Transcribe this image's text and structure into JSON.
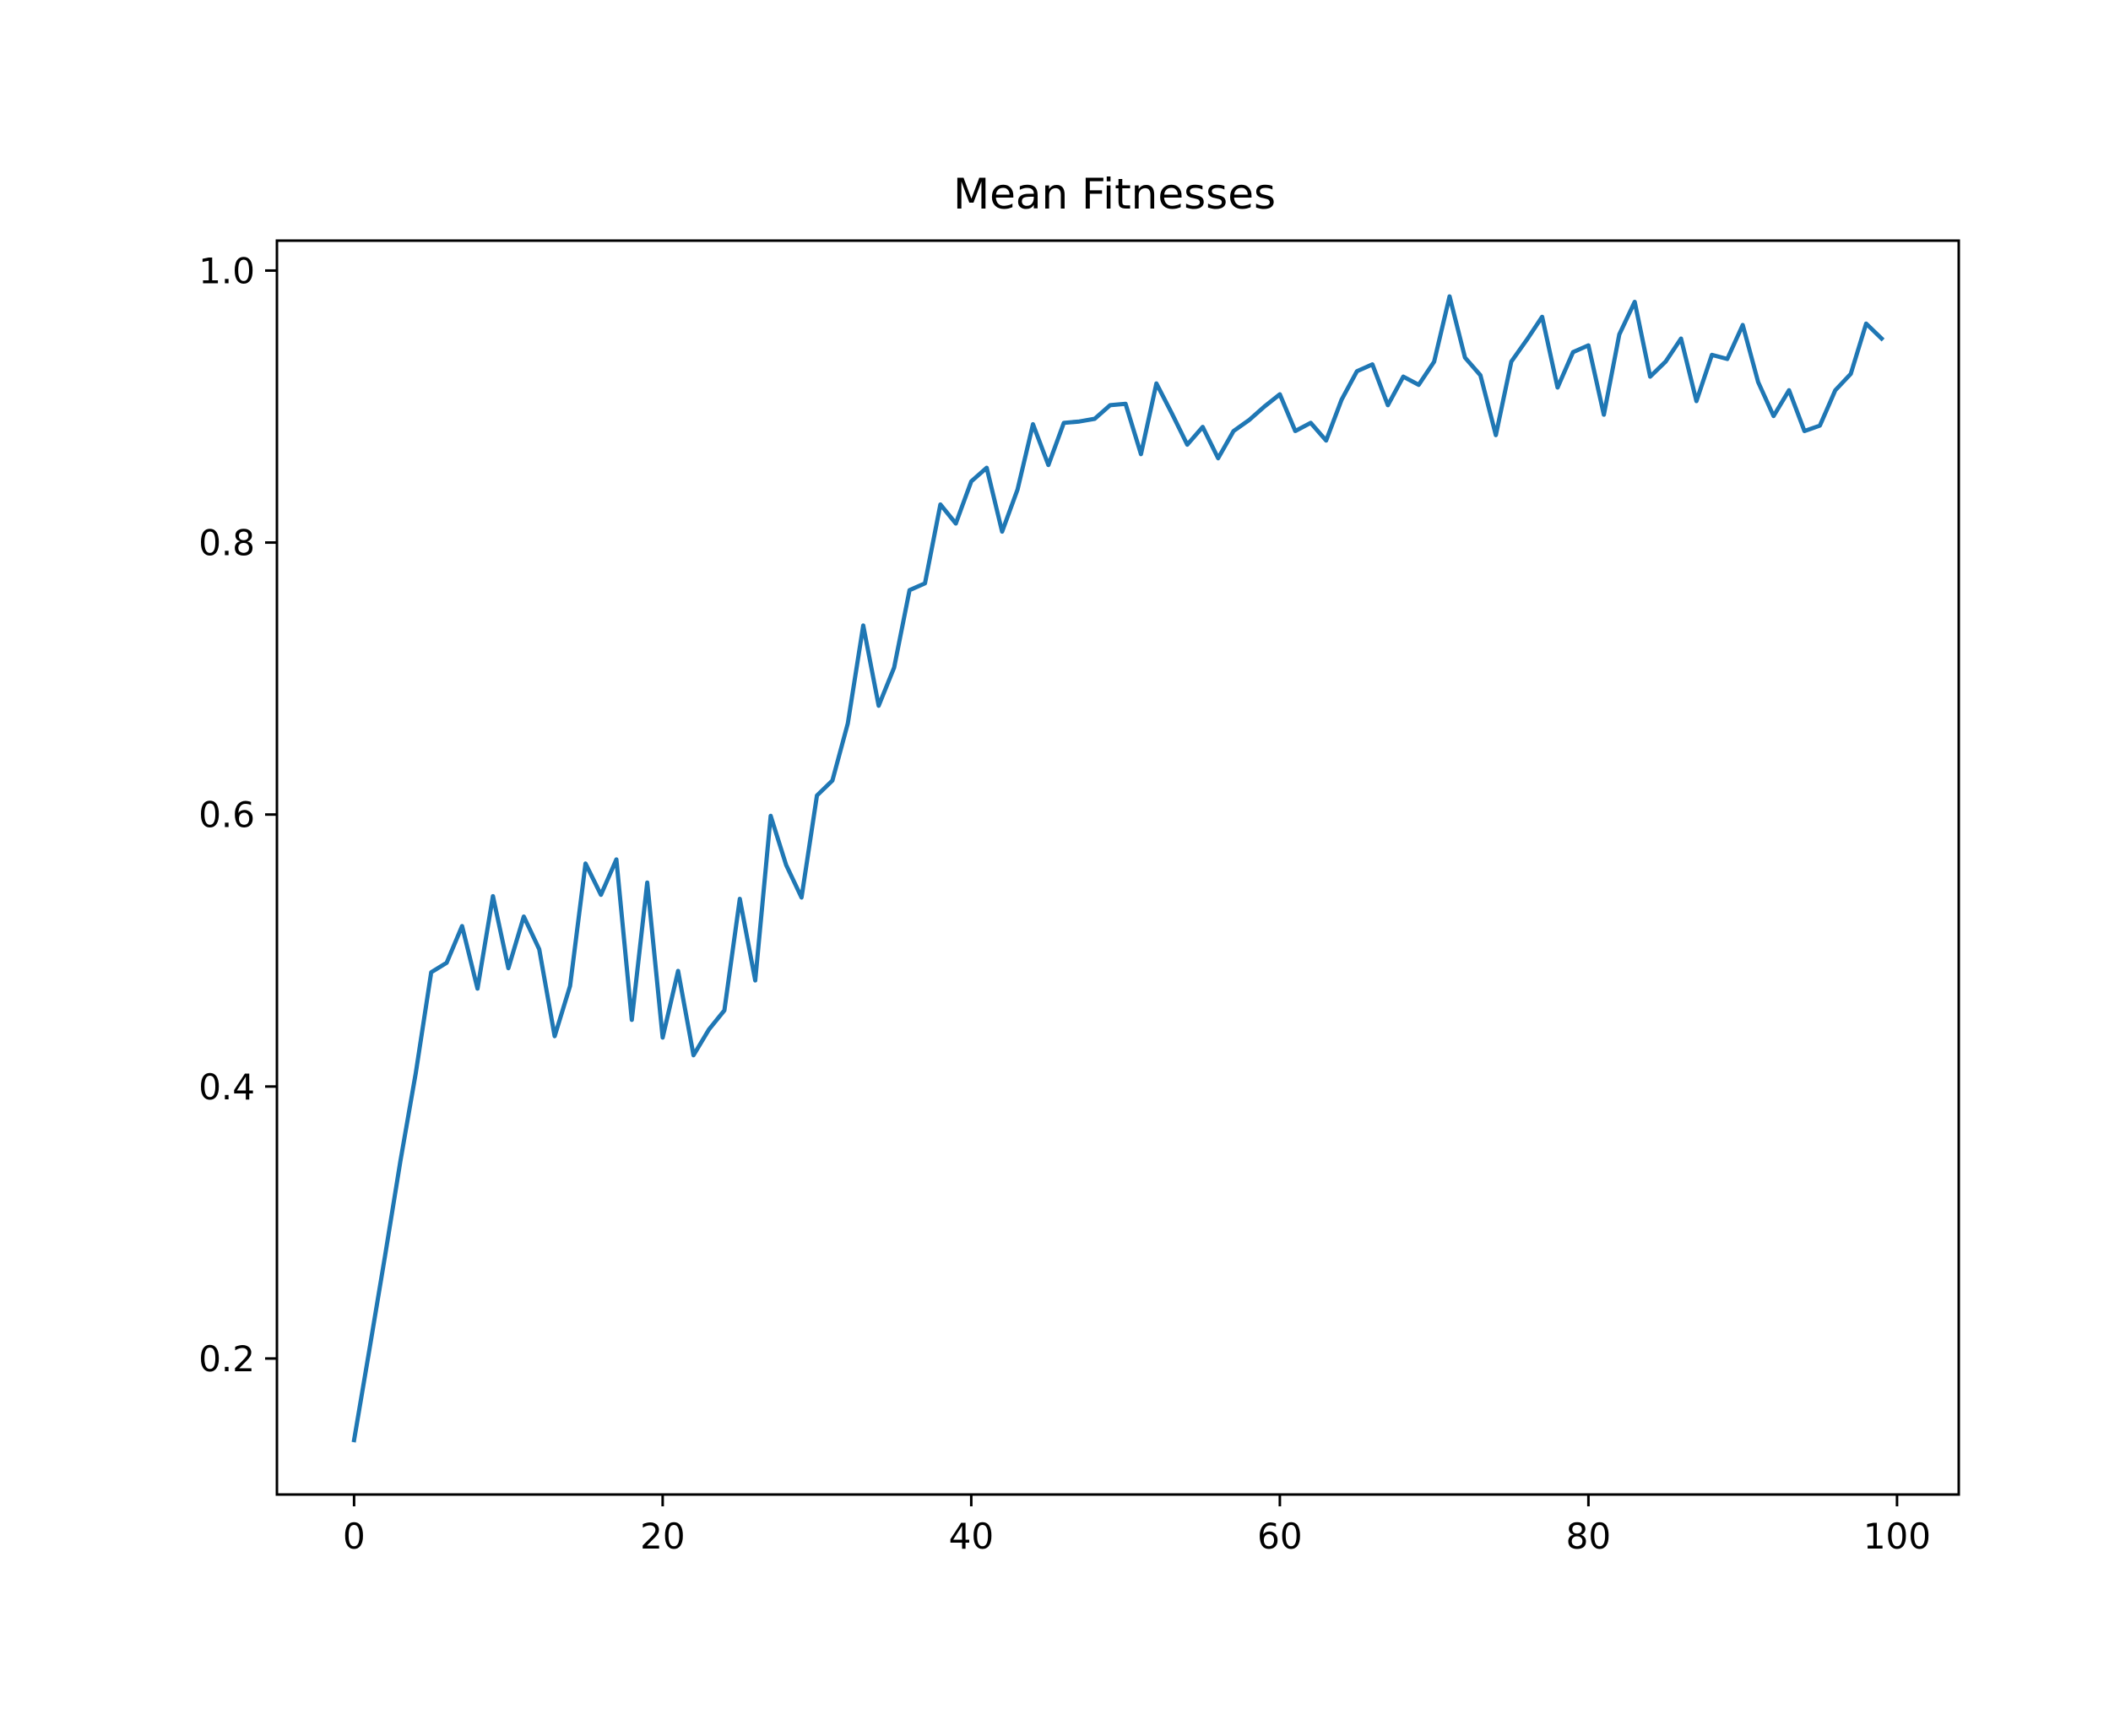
{
  "chart_data": {
    "type": "line",
    "title": "Mean Fitnesses",
    "xlabel": "",
    "ylabel": "",
    "xlim": [
      -5,
      104
    ],
    "ylim": [
      0.1,
      1.022
    ],
    "grid": false,
    "legend": "none",
    "x_ticks": [
      0,
      20,
      40,
      60,
      80,
      100
    ],
    "x_tick_labels": [
      "0",
      "20",
      "40",
      "60",
      "80",
      "100"
    ],
    "y_ticks": [
      0.2,
      0.4,
      0.6,
      0.8,
      1.0
    ],
    "y_tick_labels": [
      "0.2",
      "0.4",
      "0.6",
      "0.8",
      "1.0"
    ],
    "series": [
      {
        "color": "#1f77b4",
        "x": [
          0,
          1,
          2,
          3,
          4,
          5,
          6,
          7,
          8,
          9,
          10,
          11,
          12,
          13,
          14,
          15,
          16,
          17,
          18,
          19,
          20,
          21,
          22,
          23,
          24,
          25,
          26,
          27,
          28,
          29,
          30,
          31,
          32,
          33,
          34,
          35,
          36,
          37,
          38,
          39,
          40,
          41,
          42,
          43,
          44,
          45,
          46,
          47,
          48,
          49,
          50,
          51,
          52,
          53,
          54,
          55,
          56,
          57,
          58,
          59,
          60,
          61,
          62,
          63,
          64,
          65,
          66,
          67,
          68,
          69,
          70,
          71,
          72,
          73,
          74,
          75,
          76,
          77,
          78,
          79,
          80,
          81,
          82,
          83,
          84,
          85,
          86,
          87,
          88,
          89,
          90,
          91,
          92,
          93,
          94,
          95,
          96,
          97,
          98,
          99
        ],
        "values": [
          0.14,
          0.207,
          0.275,
          0.345,
          0.41,
          0.484,
          0.491,
          0.518,
          0.472,
          0.54,
          0.487,
          0.525,
          0.501,
          0.437,
          0.474,
          0.564,
          0.541,
          0.567,
          0.449,
          0.55,
          0.436,
          0.485,
          0.423,
          0.442,
          0.456,
          0.538,
          0.478,
          0.599,
          0.563,
          0.539,
          0.614,
          0.625,
          0.667,
          0.739,
          0.68,
          0.708,
          0.765,
          0.77,
          0.828,
          0.814,
          0.845,
          0.855,
          0.808,
          0.839,
          0.887,
          0.857,
          0.888,
          0.889,
          0.891,
          0.901,
          0.902,
          0.865,
          0.917,
          0.895,
          0.872,
          0.885,
          0.862,
          0.882,
          0.89,
          0.9,
          0.909,
          0.882,
          0.888,
          0.875,
          0.905,
          0.926,
          0.931,
          0.901,
          0.922,
          0.916,
          0.933,
          0.981,
          0.936,
          0.923,
          0.879,
          0.933,
          0.949,
          0.966,
          0.914,
          0.94,
          0.945,
          0.894,
          0.953,
          0.977,
          0.922,
          0.933,
          0.95,
          0.904,
          0.938,
          0.935,
          0.96,
          0.918,
          0.893,
          0.912,
          0.882,
          0.886,
          0.912,
          0.924,
          0.961,
          0.95
        ]
      }
    ]
  }
}
